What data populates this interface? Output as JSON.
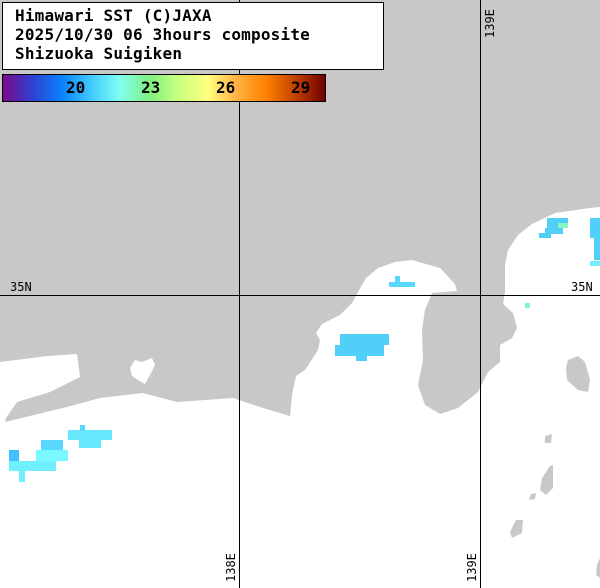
{
  "title": {
    "lines": [
      "Himawari SST (C)JAXA",
      "2025/10/30 06 3hours composite",
      "Shizuoka Suigiken"
    ]
  },
  "colorbar": {
    "labels": [
      "20",
      "23",
      "26",
      "29"
    ],
    "gradient": [
      "#7a0a8c",
      "#3040d0",
      "#0a80ff",
      "#40c8ff",
      "#80fff0",
      "#80f080",
      "#c8ff80",
      "#ffff80",
      "#ffb040",
      "#ff8000",
      "#c04000",
      "#700000"
    ]
  },
  "grid": {
    "lat_labels": [
      "35N",
      "35N"
    ],
    "lon_labels": {
      "top": "139E",
      "bottom_left": "138E",
      "bottom_right": "139E"
    }
  },
  "colors": {
    "land": "#c8c8c8",
    "sea_no_data": "#ffffff",
    "sst_cyan": "#50d0f8",
    "sst_light": "#70f0ff",
    "sst_green": "#80f8c0",
    "gridline": "#000000"
  }
}
